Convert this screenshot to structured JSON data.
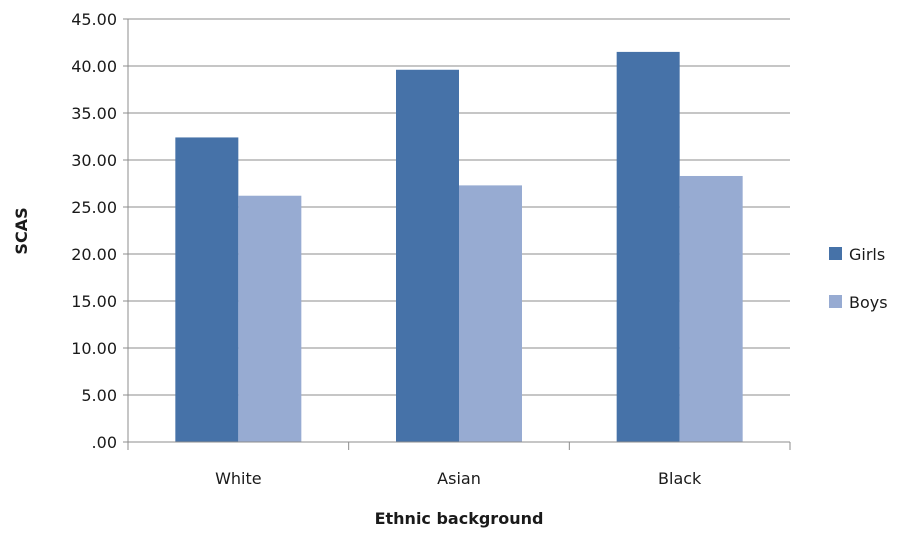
{
  "chart_data": {
    "type": "bar",
    "categories": [
      "White",
      "Asian",
      "Black"
    ],
    "series": [
      {
        "name": "Girls",
        "values": [
          32.4,
          39.6,
          41.5
        ],
        "color": "#4672a8"
      },
      {
        "name": "Boys",
        "values": [
          26.2,
          27.3,
          28.3
        ],
        "color": "#97abd2"
      }
    ],
    "xlabel": "Ethnic background",
    "ylabel": "SCAS",
    "ylim": [
      0,
      45
    ],
    "yticks": [
      ".00",
      "5.00",
      "10.00",
      "15.00",
      "20.00",
      "25.00",
      "30.00",
      "35.00",
      "40.00",
      "45.00"
    ],
    "grid": true,
    "legend_position": "right",
    "gridline_color": "#8c8c8c"
  }
}
